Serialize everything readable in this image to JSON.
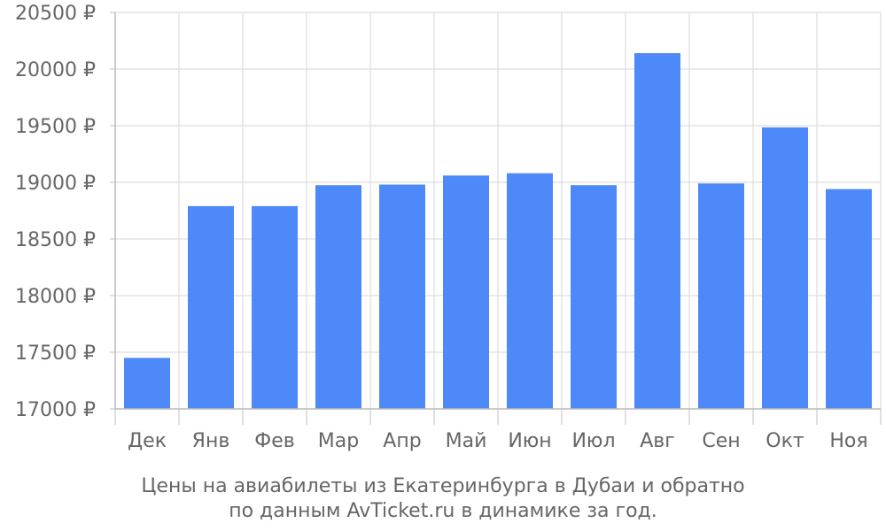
{
  "chart_data": {
    "type": "bar",
    "categories": [
      "Дек",
      "Янв",
      "Фев",
      "Мар",
      "Апр",
      "Май",
      "Июн",
      "Июл",
      "Авг",
      "Сен",
      "Окт",
      "Ноя"
    ],
    "series": [
      {
        "values": [
          17450,
          18790,
          18790,
          18975,
          18980,
          19060,
          19080,
          18975,
          20140,
          18990,
          19485,
          18940
        ],
        "color": "#4d89f9"
      }
    ],
    "ylim": [
      17000,
      20500
    ],
    "yticks": [
      17000,
      17500,
      18000,
      18500,
      19000,
      19500,
      20000,
      20500
    ],
    "ytick_labels": [
      "17000 ₽",
      "17500 ₽",
      "18000 ₽",
      "18500 ₽",
      "19000 ₽",
      "19500 ₽",
      "20000 ₽",
      "20500 ₽"
    ],
    "grid": true,
    "caption": [
      "Цены на авиабилеты из Екатеринбурга в Дубаи и обратно",
      "по данным AvTicket.ru в динамике за год."
    ]
  }
}
